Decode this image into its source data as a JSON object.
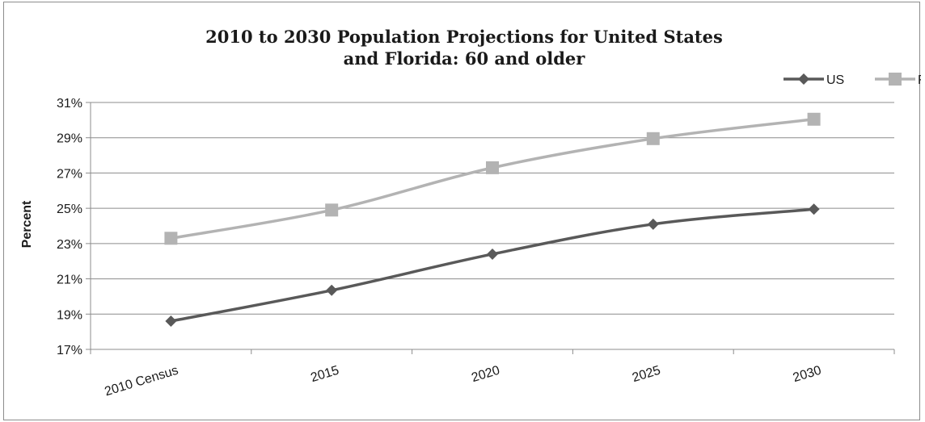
{
  "chart_data": {
    "type": "line",
    "title_lines": [
      "2010 to 2030 Population Projections for United States",
      "and Florida: 60 and older"
    ],
    "xlabel": "",
    "ylabel": "Percent",
    "categories": [
      "2010 Census",
      "2015",
      "2020",
      "2025",
      "2030"
    ],
    "y_ticks": [
      "17%",
      "19%",
      "21%",
      "23%",
      "25%",
      "27%",
      "29%",
      "31%"
    ],
    "ylim": [
      17,
      31
    ],
    "grid": true,
    "legend_position": "top-right",
    "series": [
      {
        "name": "US",
        "values": [
          18.6,
          20.35,
          22.4,
          24.1,
          24.95
        ],
        "color": "#595959",
        "marker": "diamond"
      },
      {
        "name": "FL",
        "values": [
          23.3,
          24.9,
          27.3,
          28.95,
          30.05
        ],
        "color": "#b3b3b3",
        "marker": "square"
      }
    ]
  }
}
